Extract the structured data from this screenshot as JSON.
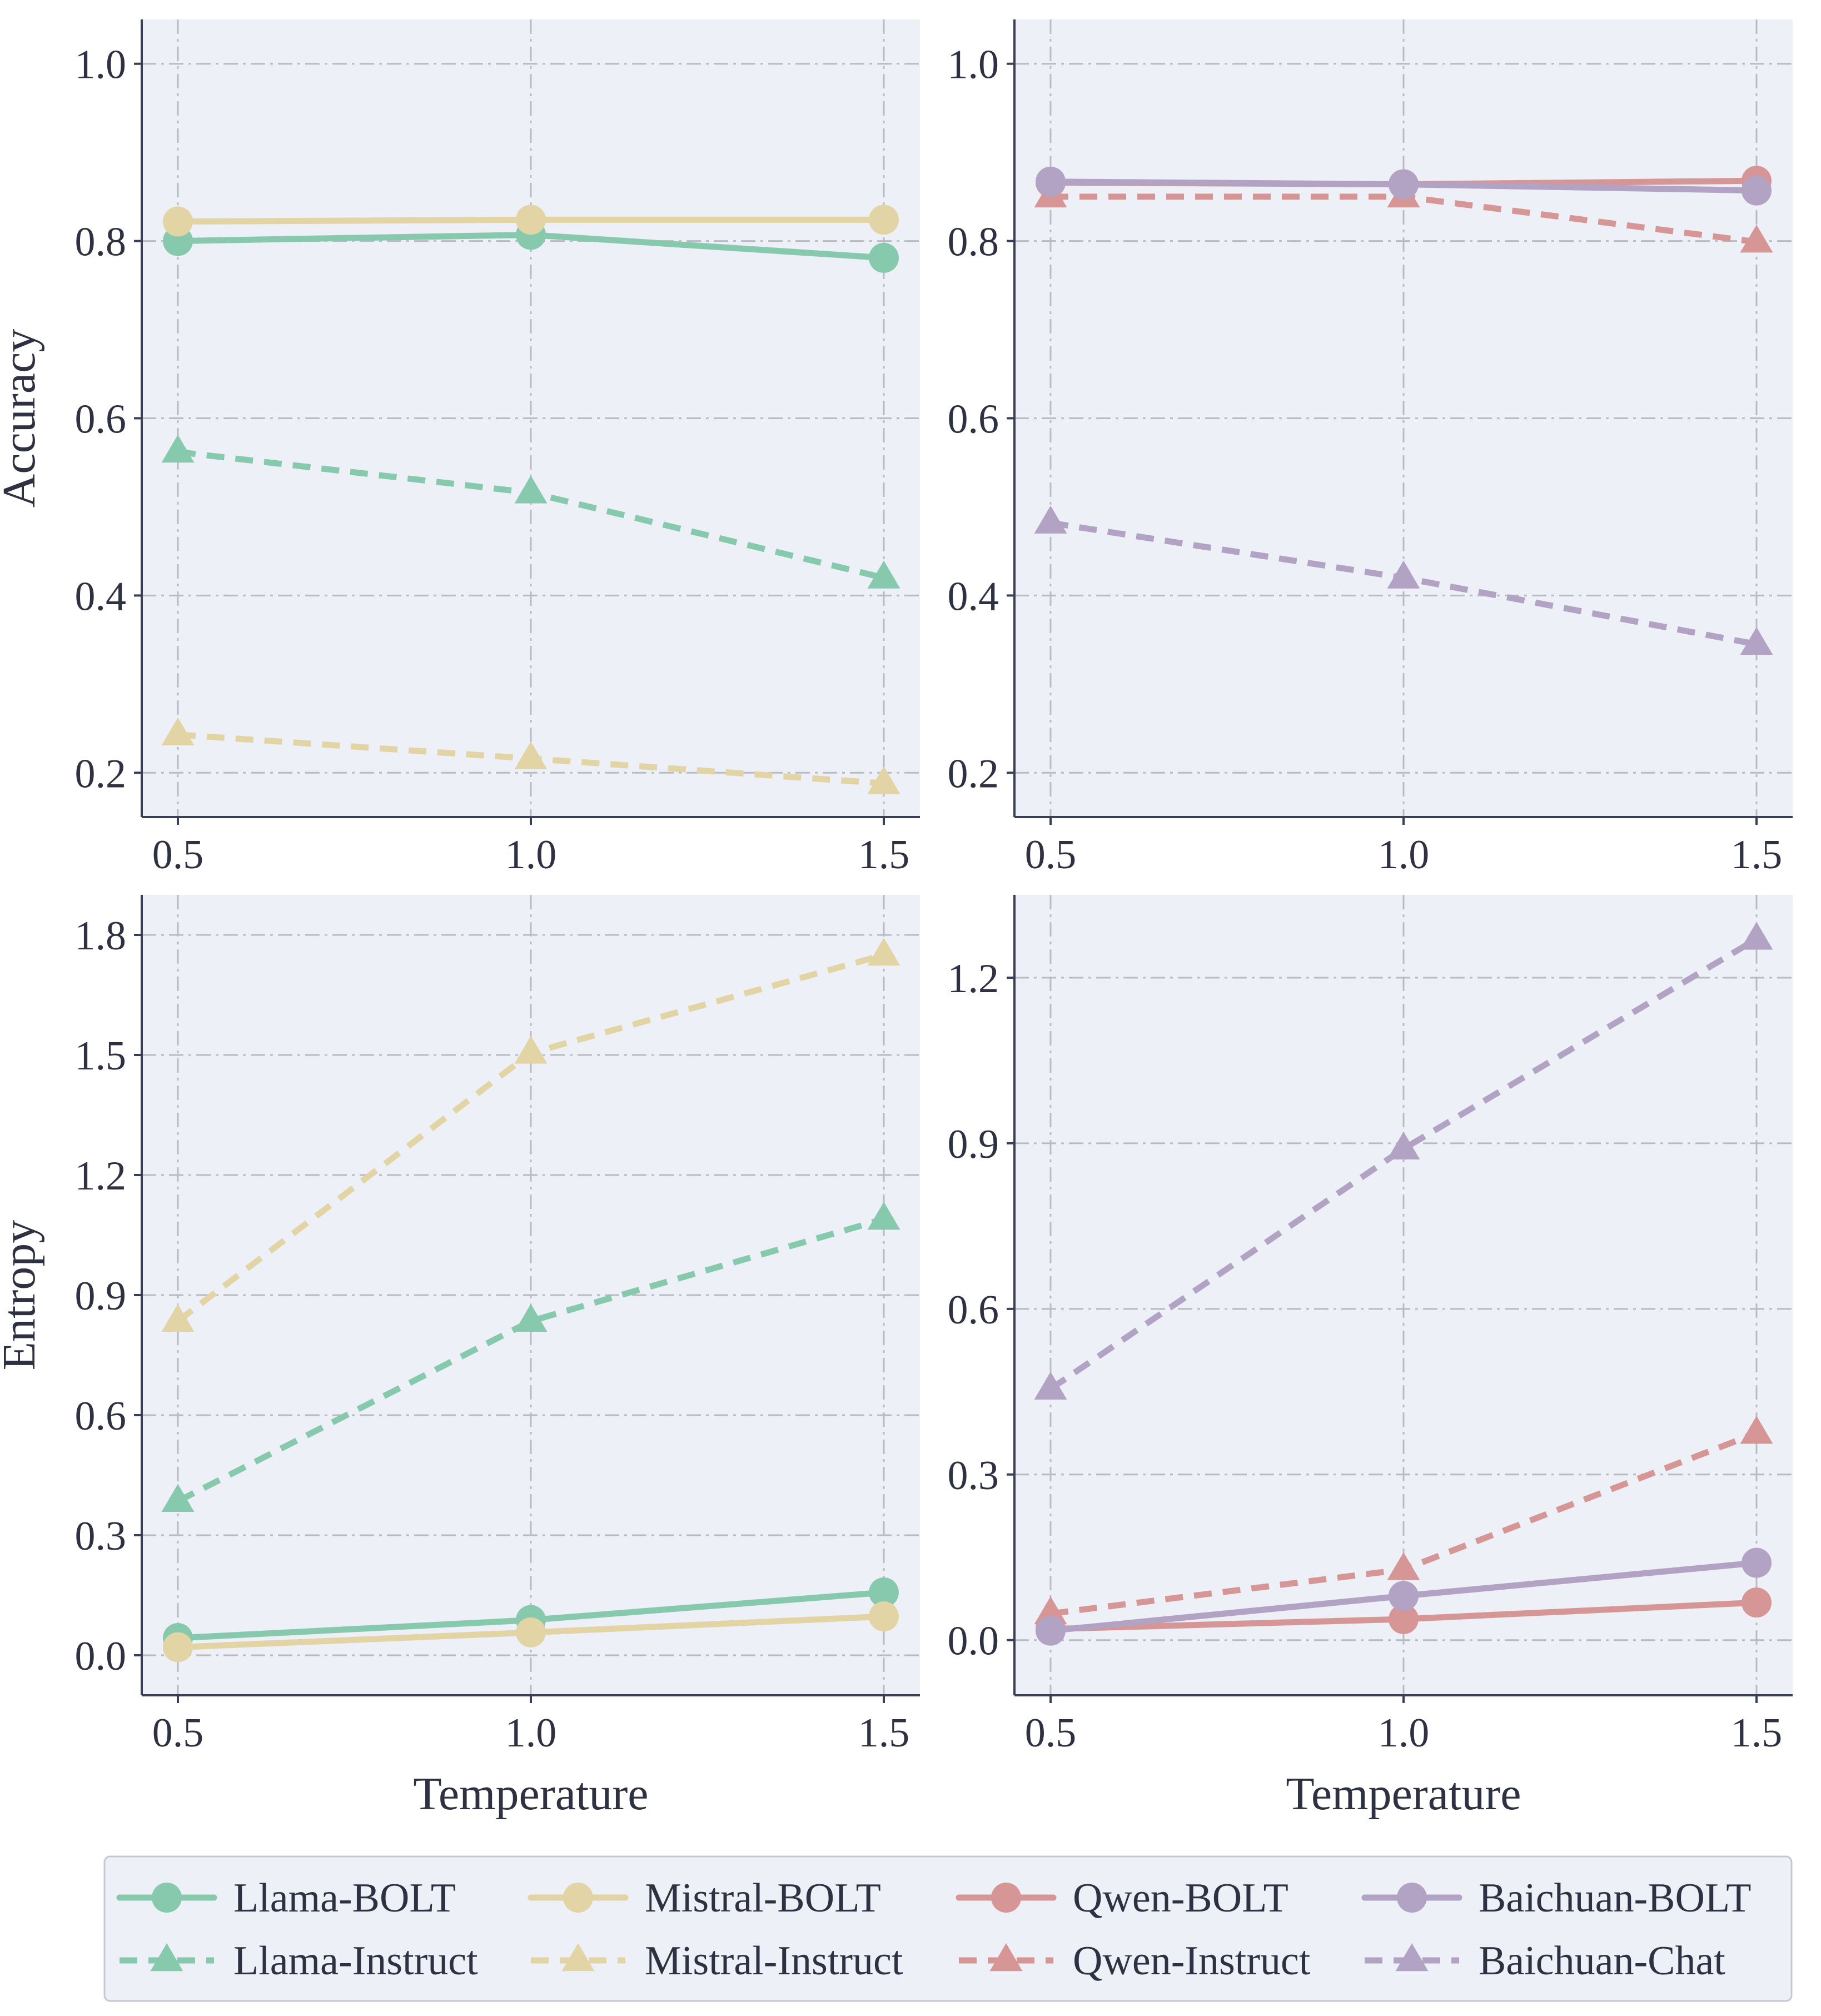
{
  "colors": {
    "panel_bg": "#edf0f6",
    "grid": "#b9bbc2",
    "axis": "#3a3f58",
    "text": "#2d3142",
    "llama": "#86c9ad",
    "mistral": "#e2d4a4",
    "qwen": "#d69696",
    "baichuan": "#b2a3c4",
    "legend_bg": "#edf0f6",
    "legend_border": "#c5c8d0"
  },
  "chart_data": [
    {
      "id": "top-left",
      "type": "line",
      "ylabel": "Accuracy",
      "xlabel": "",
      "x": [
        0.5,
        1.0,
        1.5
      ],
      "xticks": [
        "0.5",
        "1.0",
        "1.5"
      ],
      "ylim": [
        0.15,
        1.05
      ],
      "yticks": [
        0.2,
        0.4,
        0.6,
        0.8,
        1.0
      ],
      "yticklabels": [
        "0.2",
        "0.4",
        "0.6",
        "0.8",
        "1.0"
      ],
      "series": [
        {
          "name": "Llama-BOLT",
          "color": "llama",
          "marker": "circle",
          "dashed": false,
          "values": [
            0.8,
            0.807,
            0.781
          ]
        },
        {
          "name": "Mistral-BOLT",
          "color": "mistral",
          "marker": "circle",
          "dashed": false,
          "values": [
            0.822,
            0.824,
            0.824
          ]
        },
        {
          "name": "Llama-Instruct",
          "color": "llama",
          "marker": "triangle",
          "dashed": true,
          "values": [
            0.562,
            0.516,
            0.42
          ]
        },
        {
          "name": "Mistral-Instruct",
          "color": "mistral",
          "marker": "triangle",
          "dashed": true,
          "values": [
            0.243,
            0.216,
            0.188
          ]
        }
      ]
    },
    {
      "id": "top-right",
      "type": "line",
      "ylabel": "",
      "xlabel": "",
      "x": [
        0.5,
        1.0,
        1.5
      ],
      "xticks": [
        "0.5",
        "1.0",
        "1.5"
      ],
      "ylim": [
        0.15,
        1.05
      ],
      "yticks": [
        0.2,
        0.4,
        0.6,
        0.8,
        1.0
      ],
      "yticklabels": [
        "0.2",
        "0.4",
        "0.6",
        "0.8",
        "1.0"
      ],
      "series": [
        {
          "name": "Qwen-BOLT",
          "color": "qwen",
          "marker": "circle",
          "dashed": false,
          "values": [
            0.866,
            0.864,
            0.868
          ]
        },
        {
          "name": "Baichuan-BOLT",
          "color": "baichuan",
          "marker": "circle",
          "dashed": false,
          "values": [
            0.867,
            0.864,
            0.857
          ]
        },
        {
          "name": "Qwen-Instruct",
          "color": "qwen",
          "marker": "triangle",
          "dashed": true,
          "values": [
            0.85,
            0.85,
            0.799
          ]
        },
        {
          "name": "Baichuan-Chat",
          "color": "baichuan",
          "marker": "triangle",
          "dashed": true,
          "values": [
            0.482,
            0.42,
            0.345
          ]
        }
      ]
    },
    {
      "id": "bottom-left",
      "type": "line",
      "ylabel": "Entropy",
      "xlabel": "Temperature",
      "x": [
        0.5,
        1.0,
        1.5
      ],
      "xticks": [
        "0.5",
        "1.0",
        "1.5"
      ],
      "ylim": [
        -0.1,
        1.9
      ],
      "yticks": [
        0.0,
        0.3,
        0.6,
        0.9,
        1.2,
        1.5,
        1.8
      ],
      "yticklabels": [
        "0.0",
        "0.3",
        "0.6",
        "0.9",
        "1.2",
        "1.5",
        "1.8"
      ],
      "series": [
        {
          "name": "Llama-BOLT",
          "color": "llama",
          "marker": "circle",
          "dashed": false,
          "values": [
            0.043,
            0.088,
            0.157
          ]
        },
        {
          "name": "Mistral-BOLT",
          "color": "mistral",
          "marker": "circle",
          "dashed": false,
          "values": [
            0.02,
            0.057,
            0.097
          ]
        },
        {
          "name": "Llama-Instruct",
          "color": "llama",
          "marker": "triangle",
          "dashed": true,
          "values": [
            0.385,
            0.835,
            1.09
          ]
        },
        {
          "name": "Mistral-Instruct",
          "color": "mistral",
          "marker": "triangle",
          "dashed": true,
          "values": [
            0.835,
            1.505,
            1.75
          ]
        }
      ]
    },
    {
      "id": "bottom-right",
      "type": "line",
      "ylabel": "",
      "xlabel": "Temperature",
      "x": [
        0.5,
        1.0,
        1.5
      ],
      "xticks": [
        "0.5",
        "1.0",
        "1.5"
      ],
      "ylim": [
        -0.1,
        1.35
      ],
      "yticks": [
        0.0,
        0.3,
        0.6,
        0.9,
        1.2
      ],
      "yticklabels": [
        "0.0",
        "0.3",
        "0.6",
        "0.9",
        "1.2"
      ],
      "series": [
        {
          "name": "Qwen-BOLT",
          "color": "qwen",
          "marker": "circle",
          "dashed": false,
          "values": [
            0.02,
            0.038,
            0.068
          ]
        },
        {
          "name": "Baichuan-BOLT",
          "color": "baichuan",
          "marker": "circle",
          "dashed": false,
          "values": [
            0.017,
            0.08,
            0.14
          ]
        },
        {
          "name": "Qwen-Instruct",
          "color": "qwen",
          "marker": "triangle",
          "dashed": true,
          "values": [
            0.048,
            0.128,
            0.375
          ]
        },
        {
          "name": "Baichuan-Chat",
          "color": "baichuan",
          "marker": "triangle",
          "dashed": true,
          "values": [
            0.455,
            0.89,
            1.27
          ]
        }
      ]
    }
  ],
  "legend": {
    "placement": "bottom-center",
    "entries": [
      {
        "label": "Llama-BOLT",
        "color": "llama",
        "marker": "circle",
        "dashed": false
      },
      {
        "label": "Mistral-BOLT",
        "color": "mistral",
        "marker": "circle",
        "dashed": false
      },
      {
        "label": "Qwen-BOLT",
        "color": "qwen",
        "marker": "circle",
        "dashed": false
      },
      {
        "label": "Baichuan-BOLT",
        "color": "baichuan",
        "marker": "circle",
        "dashed": false
      },
      {
        "label": "Llama-Instruct",
        "color": "llama",
        "marker": "triangle",
        "dashed": true
      },
      {
        "label": "Mistral-Instruct",
        "color": "mistral",
        "marker": "triangle",
        "dashed": true
      },
      {
        "label": "Qwen-Instruct",
        "color": "qwen",
        "marker": "triangle",
        "dashed": true
      },
      {
        "label": "Baichuan-Chat",
        "color": "baichuan",
        "marker": "triangle",
        "dashed": true
      }
    ]
  }
}
